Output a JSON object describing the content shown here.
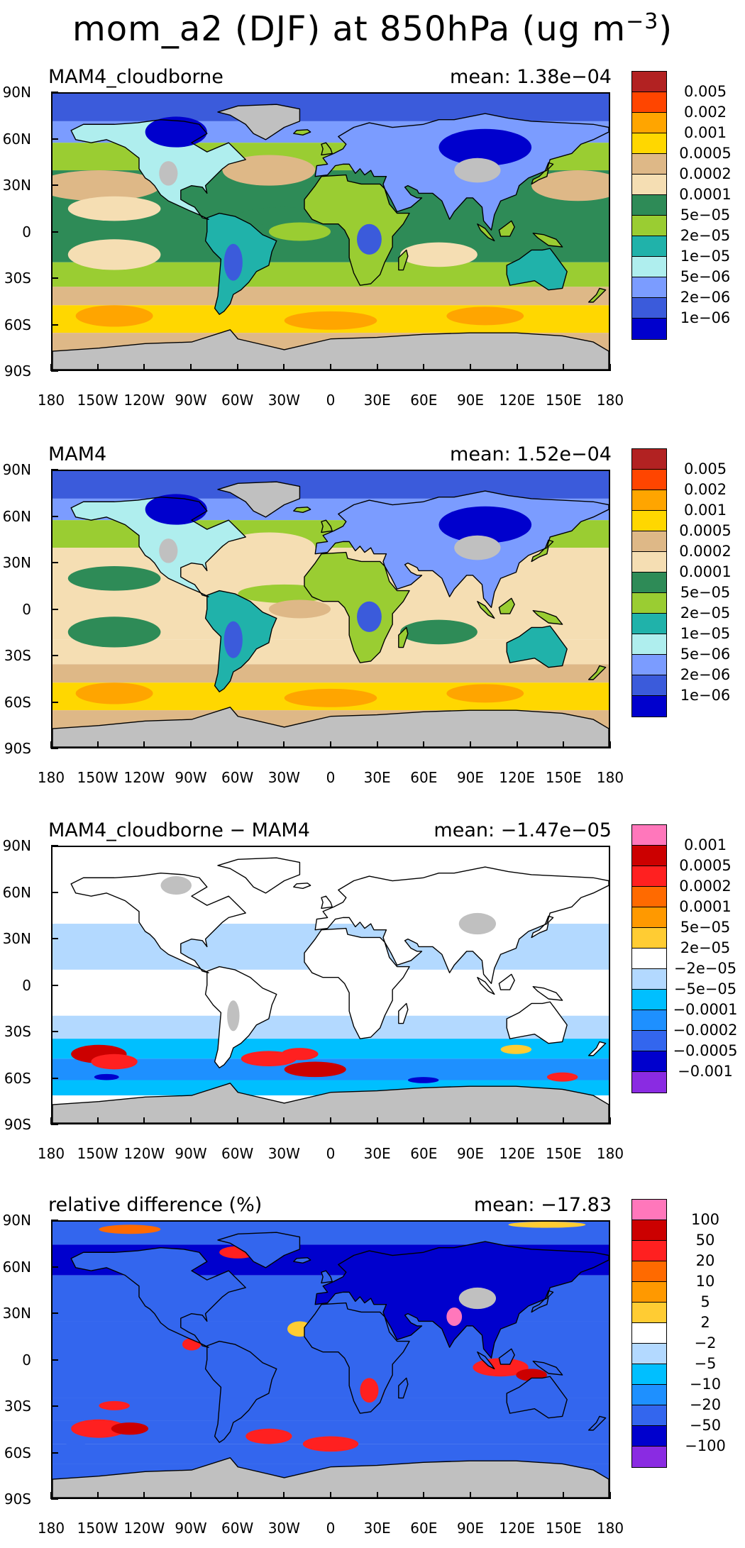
{
  "title_main": "mom_a2 (DJF) at 850hPa (ug m",
  "title_sup": "−3",
  "title_end": ")",
  "lat_labels": [
    "90N",
    "60N",
    "30N",
    "0",
    "30S",
    "60S",
    "90S"
  ],
  "lon_labels": [
    "180",
    "150W",
    "120W",
    "90W",
    "60W",
    "30W",
    "0",
    "30E",
    "60E",
    "90E",
    "120E",
    "150E",
    "180"
  ],
  "chart_data": [
    {
      "type": "heatmap",
      "title": "MAM4_cloudborne",
      "mean_label": "mean:  1.38e−04",
      "levels": [
        "0.005",
        "0.002",
        "0.001",
        "0.0005",
        "0.0002",
        "0.0001",
        "5e−05",
        "2e−05",
        "1e−05",
        "5e−06",
        "2e−06",
        "1e−06"
      ],
      "colors": [
        "#b22222",
        "#ff4500",
        "#ffa500",
        "#ffd700",
        "#deb887",
        "#f5deb3",
        "#2e8b57",
        "#9acd32",
        "#20b2aa",
        "#afeeee",
        "#7b9cff",
        "#3b5bdb",
        "#0000cd"
      ],
      "missing_color": "#c0c0c0",
      "ylim": [
        -90,
        90
      ],
      "xlim": [
        -180,
        180
      ]
    },
    {
      "type": "heatmap",
      "title": "MAM4",
      "mean_label": "mean:  1.52e−04",
      "levels": [
        "0.005",
        "0.002",
        "0.001",
        "0.0005",
        "0.0002",
        "0.0001",
        "5e−05",
        "2e−05",
        "1e−05",
        "5e−06",
        "2e−06",
        "1e−06"
      ],
      "colors": [
        "#b22222",
        "#ff4500",
        "#ffa500",
        "#ffd700",
        "#deb887",
        "#f5deb3",
        "#2e8b57",
        "#9acd32",
        "#20b2aa",
        "#afeeee",
        "#7b9cff",
        "#3b5bdb",
        "#0000cd"
      ],
      "missing_color": "#c0c0c0",
      "ylim": [
        -90,
        90
      ],
      "xlim": [
        -180,
        180
      ]
    },
    {
      "type": "heatmap",
      "title": "MAM4_cloudborne − MAM4",
      "mean_label": "mean:  −1.47e−05",
      "levels": [
        "0.001",
        "0.0005",
        "0.0002",
        "0.0001",
        "5e−05",
        "2e−05",
        "−2e−05",
        "−5e−05",
        "−0.0001",
        "−0.0002",
        "−0.0005",
        "−0.001"
      ],
      "colors": [
        "#ff77bb",
        "#cc0000",
        "#ff2020",
        "#ff6a00",
        "#ff9900",
        "#ffcc33",
        "#ffffff",
        "#b3d9ff",
        "#00bfff",
        "#1e90ff",
        "#3366ee",
        "#0000cd",
        "#8a2be2"
      ],
      "missing_color": "#c0c0c0",
      "ylim": [
        -90,
        90
      ],
      "xlim": [
        -180,
        180
      ]
    },
    {
      "type": "heatmap",
      "title": "relative difference (%)",
      "mean_label": "mean:  −17.83",
      "levels": [
        "100",
        "50",
        "20",
        "10",
        "5",
        "2",
        "−2",
        "−5",
        "−10",
        "−20",
        "−50",
        "−100"
      ],
      "colors": [
        "#ff77bb",
        "#cc0000",
        "#ff2020",
        "#ff6a00",
        "#ff9900",
        "#ffcc33",
        "#ffffff",
        "#b3d9ff",
        "#00bfff",
        "#1e90ff",
        "#3366ee",
        "#0000cd",
        "#8a2be2"
      ],
      "missing_color": "#c0c0c0",
      "ylim": [
        -90,
        90
      ],
      "xlim": [
        -180,
        180
      ]
    }
  ]
}
